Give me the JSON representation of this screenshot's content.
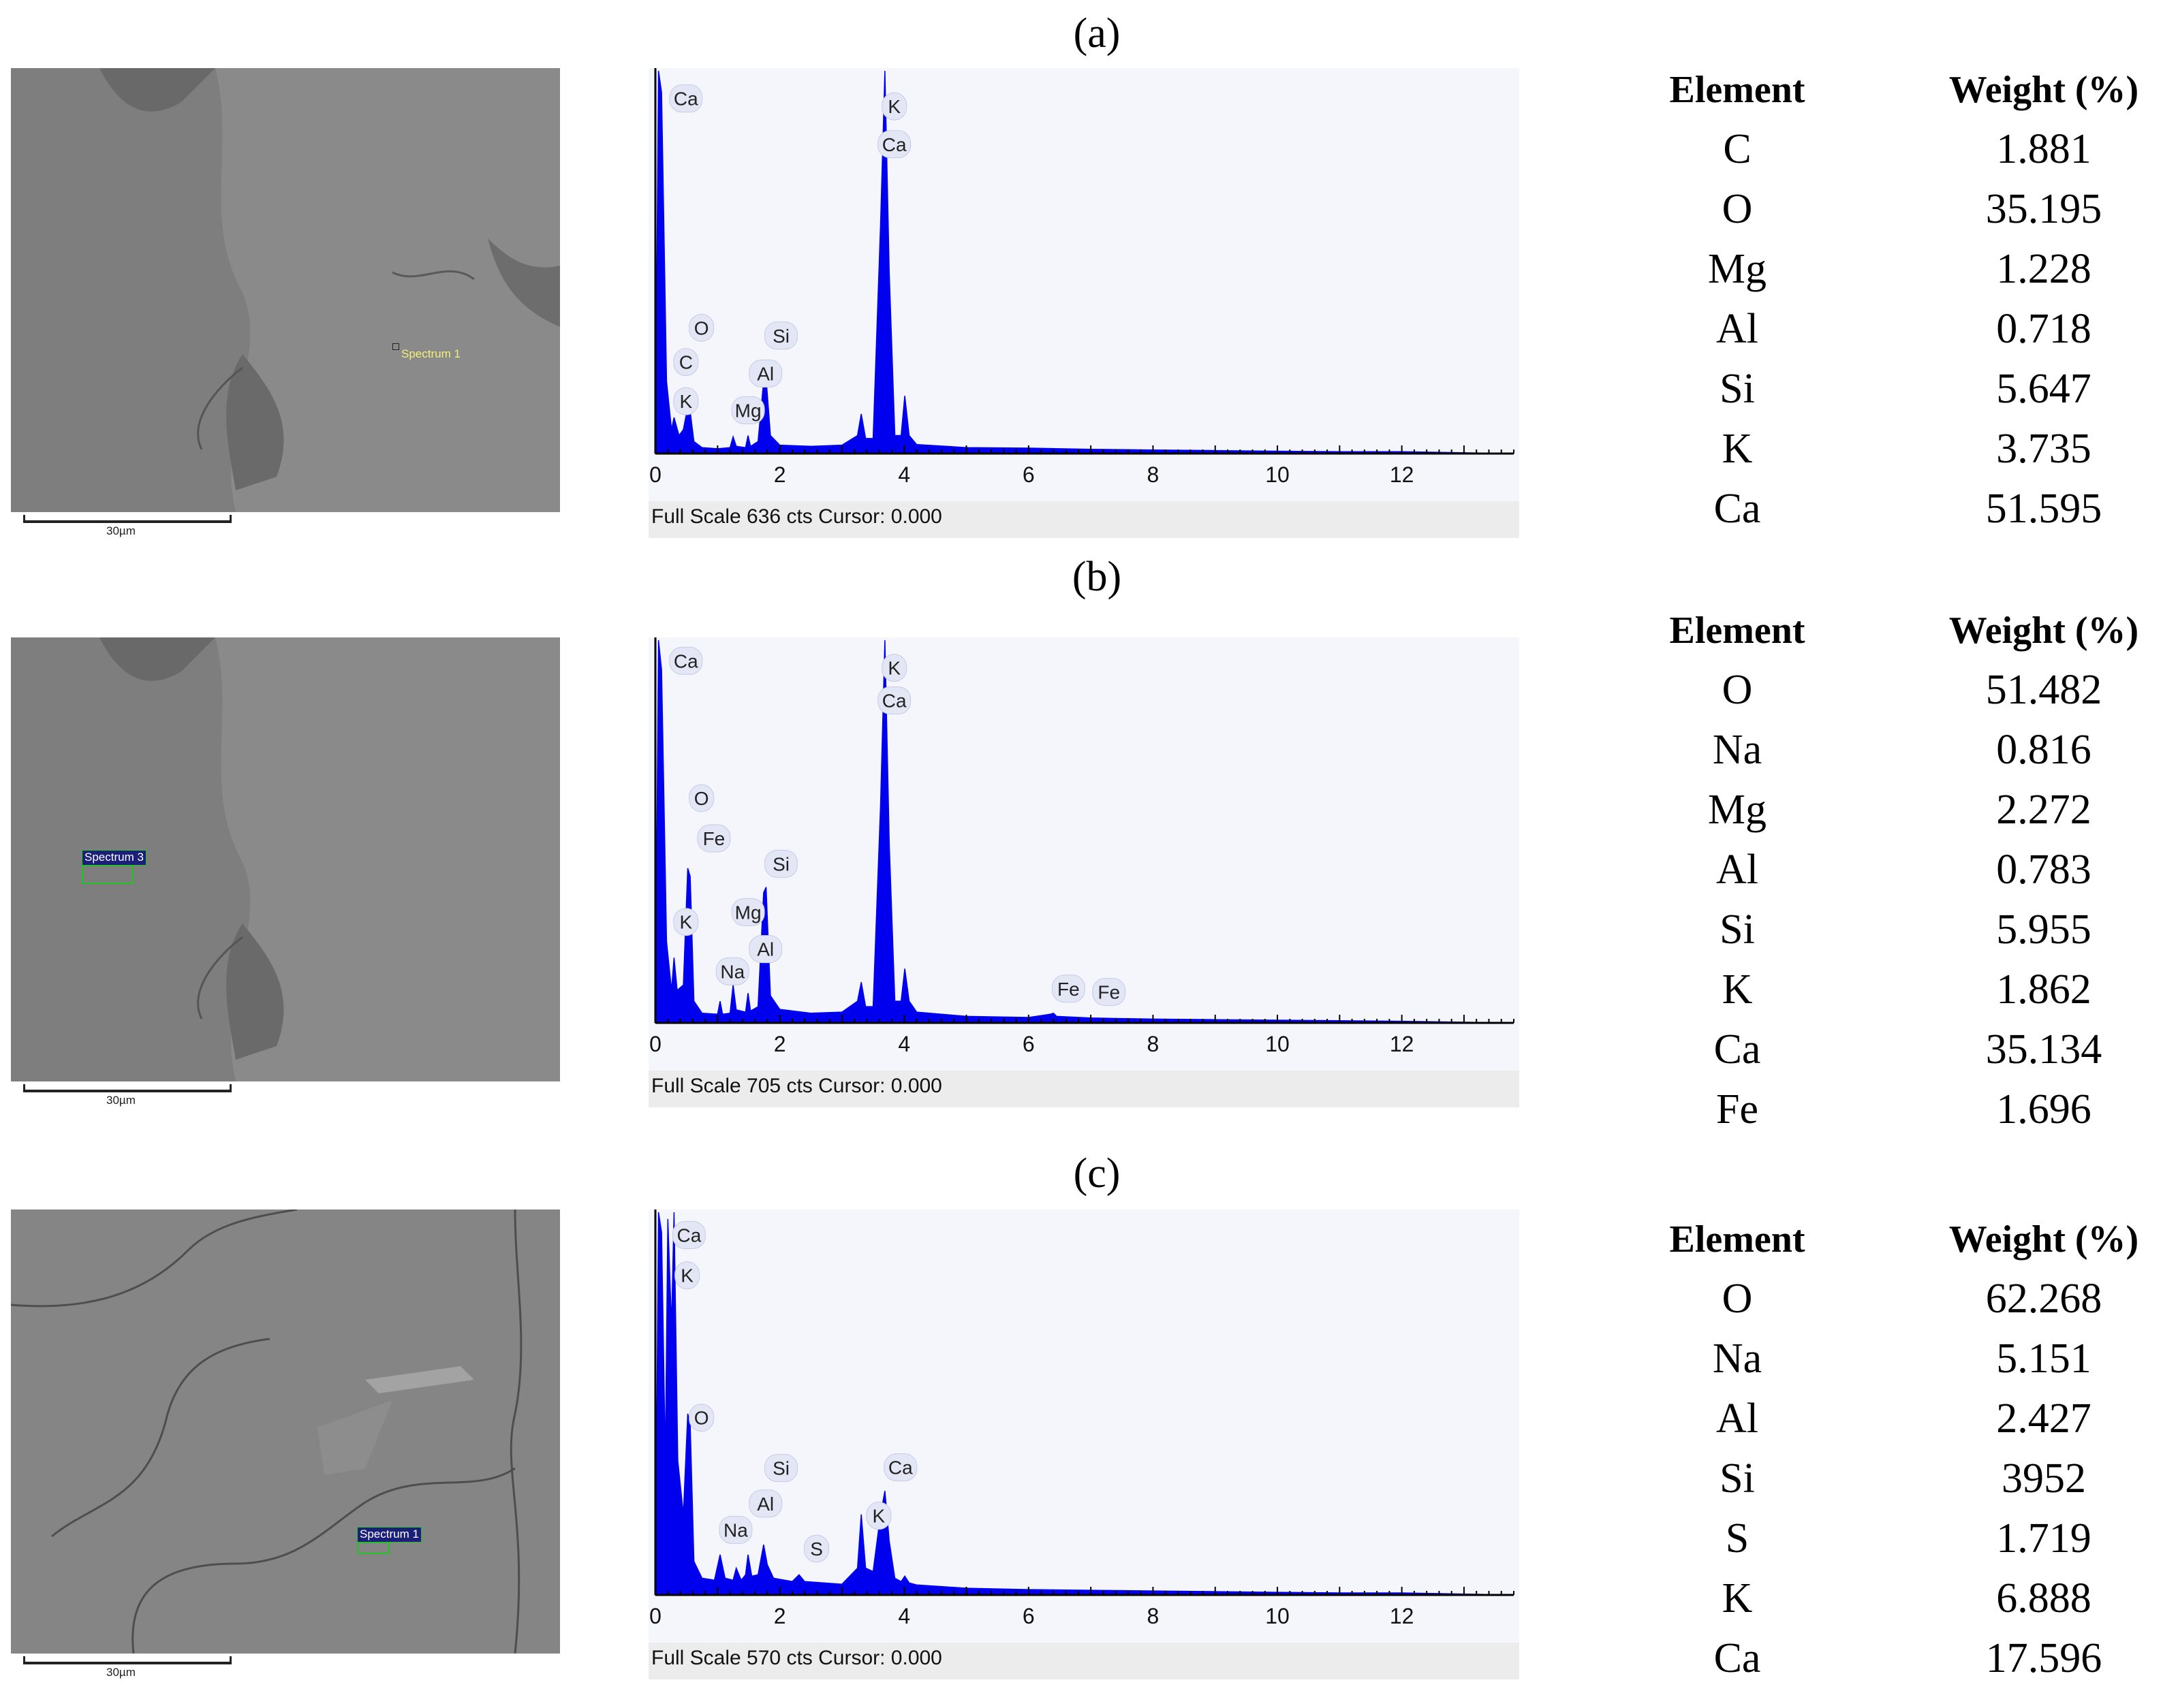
{
  "panels": [
    {
      "label": "(a)",
      "sem": {
        "spectrum_label": "Spectrum 1",
        "scale_label": "30µm",
        "style": "yellow-text"
      },
      "chart_data": {
        "type": "area",
        "xlabel": "",
        "ylabel": "",
        "x_ticks": [
          "0",
          "2",
          "4",
          "6",
          "8",
          "10",
          "12"
        ],
        "xlim": [
          0,
          13.8
        ],
        "ylim": [
          0,
          636
        ],
        "footer": "Full Scale 636 cts Cursor: 0.000",
        "series": [
          {
            "x": [
              0,
              0.05,
              0.1,
              0.18,
              0.26,
              0.3,
              0.38,
              0.45,
              0.52,
              0.56,
              0.62,
              0.75,
              1.0,
              1.2,
              1.25,
              1.3,
              1.45,
              1.49,
              1.53,
              1.65,
              1.74,
              1.78,
              1.85,
              2.0,
              2.5,
              3.0,
              3.25,
              3.31,
              3.38,
              3.5,
              3.62,
              3.69,
              3.76,
              3.85,
              3.95,
              4.01,
              4.08,
              4.2,
              5.0,
              6.0,
              7.0,
              8.0,
              9.0,
              10.0,
              11.0,
              12.0,
              13.8
            ],
            "y": [
              0,
              636,
              600,
              120,
              40,
              60,
              30,
              40,
              78,
              70,
              20,
              10,
              8,
              10,
              28,
              12,
              10,
              30,
              12,
              20,
              120,
              126,
              30,
              14,
              12,
              14,
              30,
              66,
              25,
              25,
              380,
              636,
              300,
              30,
              30,
              96,
              30,
              15,
              10,
              9,
              7,
              6,
              5,
              4,
              3,
              3,
              0
            ]
          }
        ],
        "peak_labels": [
          {
            "text": "Ca",
            "x": 0.25,
            "y": 590
          },
          {
            "text": "K",
            "x": 3.6,
            "y": 577
          },
          {
            "text": "Ca",
            "x": 3.6,
            "y": 514
          },
          {
            "text": "O",
            "x": 0.5,
            "y": 209
          },
          {
            "text": "Si",
            "x": 1.78,
            "y": 196
          },
          {
            "text": "C",
            "x": 0.25,
            "y": 152
          },
          {
            "text": "Al",
            "x": 1.53,
            "y": 133
          },
          {
            "text": "K",
            "x": 0.25,
            "y": 87
          },
          {
            "text": "Mg",
            "x": 1.25,
            "y": 72
          }
        ]
      },
      "table": {
        "header": {
          "element": "Element",
          "weight": "Weight (%)"
        },
        "rows": [
          {
            "element": "C",
            "weight": "1.881"
          },
          {
            "element": "O",
            "weight": "35.195"
          },
          {
            "element": "Mg",
            "weight": "1.228"
          },
          {
            "element": "Al",
            "weight": "0.718"
          },
          {
            "element": "Si",
            "weight": "5.647"
          },
          {
            "element": "K",
            "weight": "3.735"
          },
          {
            "element": "Ca",
            "weight": "51.595"
          }
        ]
      }
    },
    {
      "label": "(b)",
      "sem": {
        "spectrum_label": "Spectrum 3",
        "scale_label": "30µm",
        "style": "blue-box"
      },
      "chart_data": {
        "type": "area",
        "xlabel": "",
        "ylabel": "",
        "x_ticks": [
          "0",
          "2",
          "4",
          "6",
          "8",
          "10",
          "12"
        ],
        "xlim": [
          0,
          13.8
        ],
        "ylim": [
          0,
          705
        ],
        "footer": "Full Scale 705 cts Cursor: 0.000",
        "series": [
          {
            "x": [
              0,
              0.05,
              0.1,
              0.18,
              0.26,
              0.3,
              0.35,
              0.45,
              0.52,
              0.56,
              0.62,
              0.75,
              1.0,
              1.04,
              1.08,
              1.2,
              1.25,
              1.3,
              1.45,
              1.49,
              1.53,
              1.65,
              1.74,
              1.78,
              1.85,
              2.0,
              2.5,
              3.0,
              3.25,
              3.31,
              3.38,
              3.5,
              3.62,
              3.69,
              3.76,
              3.85,
              3.95,
              4.01,
              4.08,
              4.2,
              5.0,
              6.0,
              6.35,
              6.4,
              6.45,
              7.0,
              8.0,
              9.0,
              10.0,
              11.0,
              12.0,
              13.8
            ],
            "y": [
              0,
              705,
              650,
              150,
              60,
              120,
              60,
              70,
              285,
              270,
              40,
              18,
              16,
              40,
              16,
              18,
              70,
              24,
              20,
              55,
              22,
              30,
              240,
              250,
              50,
              25,
              18,
              20,
              40,
              75,
              30,
              30,
              400,
              705,
              330,
              40,
              40,
              100,
              40,
              20,
              12,
              10,
              16,
              18,
              12,
              9,
              7,
              6,
              5,
              4,
              3,
              0
            ]
          }
        ],
        "peak_labels": [
          {
            "text": "Ca",
            "x": 0.25,
            "y": 667
          },
          {
            "text": "K",
            "x": 3.6,
            "y": 654
          },
          {
            "text": "Ca",
            "x": 3.6,
            "y": 594
          },
          {
            "text": "O",
            "x": 0.5,
            "y": 414
          },
          {
            "text": "Fe",
            "x": 0.7,
            "y": 340
          },
          {
            "text": "Si",
            "x": 1.78,
            "y": 293
          },
          {
            "text": "Mg",
            "x": 1.25,
            "y": 204
          },
          {
            "text": "K",
            "x": 0.25,
            "y": 186
          },
          {
            "text": "Al",
            "x": 1.53,
            "y": 136
          },
          {
            "text": "Na",
            "x": 1.0,
            "y": 95
          },
          {
            "text": "Fe",
            "x": 6.4,
            "y": 63
          },
          {
            "text": "Fe",
            "x": 7.05,
            "y": 57
          }
        ]
      },
      "table": {
        "header": {
          "element": "Element",
          "weight": "Weight (%)"
        },
        "rows": [
          {
            "element": "O",
            "weight": "51.482"
          },
          {
            "element": "Na",
            "weight": "0.816"
          },
          {
            "element": "Mg",
            "weight": "2.272"
          },
          {
            "element": "Al",
            "weight": "0.783"
          },
          {
            "element": "Si",
            "weight": "5.955"
          },
          {
            "element": "K",
            "weight": "1.862"
          },
          {
            "element": "Ca",
            "weight": "35.134"
          },
          {
            "element": "Fe",
            "weight": "1.696"
          }
        ]
      }
    },
    {
      "label": "(c)",
      "sem": {
        "spectrum_label": "Spectrum 1",
        "scale_label": "30µm",
        "style": "blue-box"
      },
      "chart_data": {
        "type": "area",
        "xlabel": "",
        "ylabel": "",
        "x_ticks": [
          "0",
          "2",
          "4",
          "6",
          "8",
          "10",
          "12"
        ],
        "xlim": [
          0,
          13.8
        ],
        "ylim": [
          0,
          570
        ],
        "footer": "Full Scale 570 cts Cursor: 0.000",
        "series": [
          {
            "x": [
              0,
              0.05,
              0.1,
              0.16,
              0.2,
              0.26,
              0.3,
              0.36,
              0.45,
              0.52,
              0.56,
              0.62,
              0.75,
              0.95,
              1.04,
              1.12,
              1.25,
              1.3,
              1.38,
              1.45,
              1.49,
              1.55,
              1.65,
              1.74,
              1.8,
              1.9,
              2.2,
              2.31,
              2.4,
              2.7,
              3.0,
              3.25,
              3.31,
              3.38,
              3.5,
              3.62,
              3.69,
              3.76,
              3.85,
              3.95,
              4.01,
              4.08,
              4.2,
              5.0,
              6.0,
              7.0,
              8.0,
              9.0,
              10.0,
              11.0,
              12.0,
              13.8
            ],
            "y": [
              0,
              570,
              540,
              200,
              560,
              400,
              570,
              200,
              120,
              270,
              255,
              50,
              25,
              22,
              60,
              25,
              22,
              40,
              22,
              30,
              60,
              28,
              30,
              75,
              45,
              25,
              20,
              30,
              20,
              18,
              16,
              40,
              120,
              40,
              35,
              120,
              155,
              80,
              25,
              20,
              28,
              18,
              15,
              10,
              8,
              7,
              6,
              5,
              4,
              3,
              3,
              0
            ]
          }
        ],
        "peak_labels": [
          {
            "text": "Ca",
            "x": 0.3,
            "y": 536
          },
          {
            "text": "K",
            "x": 0.27,
            "y": 476
          },
          {
            "text": "O",
            "x": 0.5,
            "y": 264
          },
          {
            "text": "Si",
            "x": 1.78,
            "y": 189
          },
          {
            "text": "Ca",
            "x": 3.7,
            "y": 190
          },
          {
            "text": "Al",
            "x": 1.53,
            "y": 136
          },
          {
            "text": "K",
            "x": 3.35,
            "y": 118
          },
          {
            "text": "Na",
            "x": 1.05,
            "y": 97
          },
          {
            "text": "S",
            "x": 2.35,
            "y": 69
          }
        ]
      },
      "table": {
        "header": {
          "element": "Element",
          "weight": "Weight (%)"
        },
        "rows": [
          {
            "element": "O",
            "weight": "62.268"
          },
          {
            "element": "Na",
            "weight": "5.151"
          },
          {
            "element": "Al",
            "weight": "2.427"
          },
          {
            "element": "Si",
            "weight": "3952"
          },
          {
            "element": "S",
            "weight": "1.719"
          },
          {
            "element": "K",
            "weight": "6.888"
          },
          {
            "element": "Ca",
            "weight": "17.596"
          }
        ]
      }
    }
  ],
  "colors": {
    "spectrum_fill": "#0000ee",
    "spectrum_bg": "#f4f6fc",
    "sem_bg": "#7b7b7b",
    "footer_bg": "#ececec"
  }
}
